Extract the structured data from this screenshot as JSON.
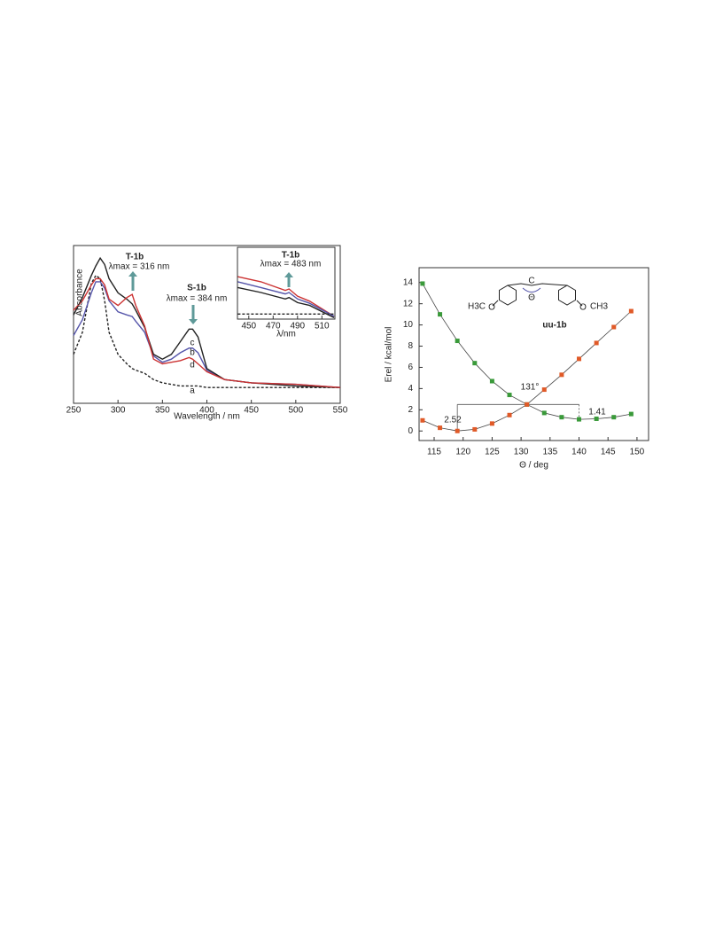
{
  "chart_data": [
    {
      "type": "line",
      "xlabel": "Wavelength / nm",
      "ylabel": "Absorbance",
      "x": [
        250,
        260,
        270,
        275,
        280,
        285,
        290,
        300,
        310,
        316,
        320,
        330,
        340,
        350,
        360,
        370,
        380,
        384,
        390,
        400,
        420,
        450,
        500,
        550
      ],
      "xlim": [
        250,
        550
      ],
      "xticks": [
        250,
        300,
        350,
        400,
        450,
        500,
        550
      ],
      "ylim": [
        0,
        1
      ],
      "series": [
        {
          "name": "a",
          "color": "#222222",
          "dashed": true,
          "values": [
            0.31,
            0.45,
            0.76,
            0.81,
            0.79,
            0.65,
            0.45,
            0.31,
            0.25,
            0.22,
            0.21,
            0.19,
            0.15,
            0.13,
            0.12,
            0.11,
            0.11,
            0.11,
            0.11,
            0.1,
            0.1,
            0.1,
            0.1,
            0.1
          ]
        },
        {
          "name": "b",
          "color": "#5555aa",
          "values": [
            0.43,
            0.53,
            0.7,
            0.77,
            0.77,
            0.73,
            0.65,
            0.58,
            0.56,
            0.55,
            0.52,
            0.45,
            0.3,
            0.26,
            0.28,
            0.32,
            0.35,
            0.35,
            0.32,
            0.21,
            0.15,
            0.13,
            0.12,
            0.1
          ]
        },
        {
          "name": "c",
          "color": "#222222",
          "values": [
            0.56,
            0.67,
            0.81,
            0.87,
            0.92,
            0.88,
            0.79,
            0.7,
            0.66,
            0.63,
            0.59,
            0.48,
            0.31,
            0.28,
            0.31,
            0.39,
            0.47,
            0.47,
            0.42,
            0.22,
            0.15,
            0.13,
            0.11,
            0.1
          ]
        },
        {
          "name": "d",
          "color": "#cc3333",
          "values": [
            0.59,
            0.65,
            0.75,
            0.79,
            0.79,
            0.75,
            0.66,
            0.62,
            0.67,
            0.69,
            0.62,
            0.49,
            0.28,
            0.25,
            0.26,
            0.27,
            0.29,
            0.28,
            0.25,
            0.2,
            0.15,
            0.13,
            0.12,
            0.1
          ]
        }
      ],
      "annotations": [
        "T-1b",
        "λmax = 316 nm",
        "S-1b",
        "λmax = 384 nm"
      ]
    },
    {
      "type": "line",
      "xlabel": "λ/nm",
      "x": [
        441,
        460,
        480,
        483,
        490,
        500,
        520
      ],
      "xlim": [
        440.7,
        520.7
      ],
      "xticks": [
        450,
        470,
        490,
        510
      ],
      "ylim": [
        0,
        1
      ],
      "series": [
        {
          "color": "#cc3333",
          "values": [
            0.59,
            0.52,
            0.4,
            0.42,
            0.32,
            0.25,
            0.04
          ]
        },
        {
          "color": "#5555aa",
          "values": [
            0.52,
            0.44,
            0.35,
            0.37,
            0.28,
            0.22,
            0.04
          ]
        },
        {
          "color": "#222222",
          "values": [
            0.44,
            0.37,
            0.28,
            0.3,
            0.23,
            0.19,
            0.02
          ]
        },
        {
          "color": "#222222",
          "dashed": true,
          "values": [
            0.07,
            0.07,
            0.07,
            0.07,
            0.07,
            0.07,
            0.07
          ]
        }
      ],
      "annotations": [
        "T-1b",
        "λmax = 483 nm"
      ]
    },
    {
      "type": "scatter-line",
      "xlabel": "Θ / deg",
      "ylabel": "Erel / kcal/mol",
      "x": [
        113,
        116,
        119,
        122,
        125,
        128,
        131,
        134,
        137,
        140,
        143,
        146,
        149
      ],
      "xlim": [
        112.4,
        152
      ],
      "xticks": [
        115,
        120,
        125,
        130,
        135,
        140,
        145,
        150
      ],
      "ylim": [
        -0.9,
        15.4
      ],
      "yticks": [
        0,
        2,
        4,
        6,
        8,
        10,
        12,
        14
      ],
      "series": [
        {
          "color": "#3a9a3a",
          "values": [
            13.9,
            11.0,
            8.5,
            6.4,
            4.7,
            3.4,
            2.5,
            1.7,
            1.3,
            1.1,
            1.15,
            1.3,
            1.6
          ]
        },
        {
          "color": "#e05a28",
          "values": [
            1.0,
            0.3,
            0.0,
            0.15,
            0.7,
            1.5,
            2.5,
            3.9,
            5.3,
            6.8,
            8.3,
            9.8,
            11.3
          ]
        }
      ],
      "annotations": [
        "131°",
        "2.52",
        "1.41"
      ],
      "structure_labels": [
        "H3C",
        "O",
        "C",
        "Θ",
        "O",
        "CH3",
        "uu-1b"
      ]
    }
  ]
}
